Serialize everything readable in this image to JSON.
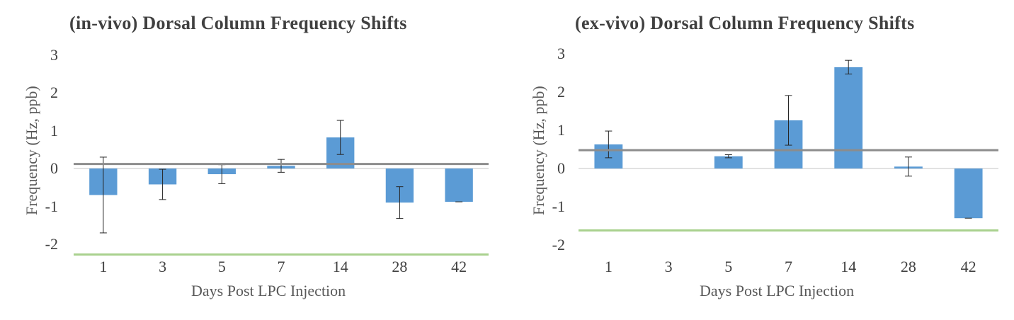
{
  "chart_data": [
    {
      "type": "bar",
      "title": "(in-vivo) Dorsal Column Frequency Shifts",
      "xlabel": "Days Post LPC Injection",
      "ylabel": "Frequency (Hz,  ppb)",
      "categories": [
        "1",
        "3",
        "5",
        "7",
        "14",
        "28",
        "42"
      ],
      "values": [
        -0.7,
        -0.42,
        -0.15,
        0.07,
        0.82,
        -0.9,
        -0.88
      ],
      "error": [
        1.0,
        0.4,
        0.25,
        0.17,
        0.45,
        0.42,
        0.0
      ],
      "ylim": [
        -2.3,
        3
      ],
      "yticks": [
        "3",
        "2",
        "1",
        "0",
        "-1",
        "-2"
      ],
      "reference_lines": [
        {
          "y": 0.12,
          "color": "#8c8c8c"
        },
        {
          "y": -2.27,
          "color": "#a9d18e"
        }
      ],
      "bar_color": "#5b9bd5",
      "grid": false
    },
    {
      "type": "bar",
      "title": "(ex-vivo) Dorsal Column Frequency Shifts",
      "xlabel": "Days Post LPC Injection",
      "ylabel": "Frequency (Hz,  ppb)",
      "categories": [
        "1",
        "3",
        "5",
        "7",
        "14",
        "28",
        "42"
      ],
      "values": [
        0.63,
        0,
        0.32,
        1.26,
        2.65,
        0.05,
        -1.3
      ],
      "error": [
        0.35,
        0.0,
        0.04,
        0.65,
        0.18,
        0.25,
        0.0
      ],
      "ylim": [
        -2.3,
        3
      ],
      "yticks": [
        "3",
        "2",
        "1",
        "0",
        "-1",
        "-2"
      ],
      "reference_lines": [
        {
          "y": 0.48,
          "color": "#8c8c8c"
        },
        {
          "y": -1.62,
          "color": "#a9d18e"
        }
      ],
      "bar_color": "#5b9bd5",
      "grid": false
    }
  ]
}
